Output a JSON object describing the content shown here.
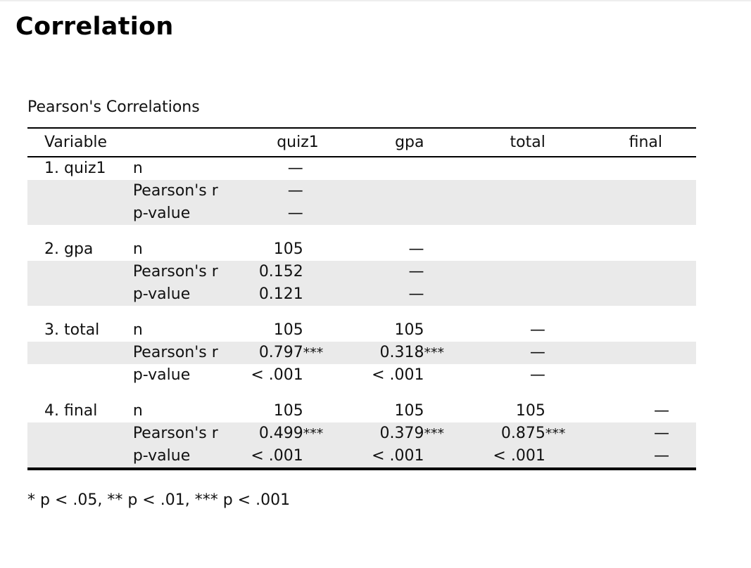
{
  "page_title": "Correlation",
  "table": {
    "title": "Pearson's Correlations",
    "headers": [
      "Variable",
      "",
      "quiz1",
      "gpa",
      "total",
      "final"
    ],
    "groups": [
      {
        "variable": "1. quiz1",
        "rows": [
          {
            "stat": "n",
            "cells": [
              {
                "v": "—",
                "s": ""
              },
              {
                "v": "",
                "s": ""
              },
              {
                "v": "",
                "s": ""
              },
              {
                "v": "",
                "s": ""
              }
            ]
          },
          {
            "stat": "Pearson's r",
            "cells": [
              {
                "v": "—",
                "s": ""
              },
              {
                "v": "",
                "s": ""
              },
              {
                "v": "",
                "s": ""
              },
              {
                "v": "",
                "s": ""
              }
            ]
          },
          {
            "stat": "p-value",
            "cells": [
              {
                "v": "—",
                "s": ""
              },
              {
                "v": "",
                "s": ""
              },
              {
                "v": "",
                "s": ""
              },
              {
                "v": "",
                "s": ""
              }
            ]
          }
        ]
      },
      {
        "variable": "2. gpa",
        "rows": [
          {
            "stat": "n",
            "cells": [
              {
                "v": "105",
                "s": ""
              },
              {
                "v": "—",
                "s": ""
              },
              {
                "v": "",
                "s": ""
              },
              {
                "v": "",
                "s": ""
              }
            ]
          },
          {
            "stat": "Pearson's r",
            "cells": [
              {
                "v": "0.152",
                "s": ""
              },
              {
                "v": "—",
                "s": ""
              },
              {
                "v": "",
                "s": ""
              },
              {
                "v": "",
                "s": ""
              }
            ]
          },
          {
            "stat": "p-value",
            "cells": [
              {
                "v": "0.121",
                "s": ""
              },
              {
                "v": "—",
                "s": ""
              },
              {
                "v": "",
                "s": ""
              },
              {
                "v": "",
                "s": ""
              }
            ]
          }
        ]
      },
      {
        "variable": "3. total",
        "rows": [
          {
            "stat": "n",
            "cells": [
              {
                "v": "105",
                "s": ""
              },
              {
                "v": "105",
                "s": ""
              },
              {
                "v": "—",
                "s": ""
              },
              {
                "v": "",
                "s": ""
              }
            ]
          },
          {
            "stat": "Pearson's r",
            "cells": [
              {
                "v": "0.797",
                "s": "***"
              },
              {
                "v": "0.318",
                "s": "***"
              },
              {
                "v": "—",
                "s": ""
              },
              {
                "v": "",
                "s": ""
              }
            ]
          },
          {
            "stat": "p-value",
            "cells": [
              {
                "v": "< .001",
                "s": ""
              },
              {
                "v": "< .001",
                "s": ""
              },
              {
                "v": "—",
                "s": ""
              },
              {
                "v": "",
                "s": ""
              }
            ]
          }
        ]
      },
      {
        "variable": "4. final",
        "rows": [
          {
            "stat": "n",
            "cells": [
              {
                "v": "105",
                "s": ""
              },
              {
                "v": "105",
                "s": ""
              },
              {
                "v": "105",
                "s": ""
              },
              {
                "v": "—",
                "s": ""
              }
            ]
          },
          {
            "stat": "Pearson's r",
            "cells": [
              {
                "v": "0.499",
                "s": "***"
              },
              {
                "v": "0.379",
                "s": "***"
              },
              {
                "v": "0.875",
                "s": "***"
              },
              {
                "v": "—",
                "s": ""
              }
            ]
          },
          {
            "stat": "p-value",
            "cells": [
              {
                "v": "< .001",
                "s": ""
              },
              {
                "v": "< .001",
                "s": ""
              },
              {
                "v": "< .001",
                "s": ""
              },
              {
                "v": "—",
                "s": ""
              }
            ]
          }
        ]
      }
    ],
    "footnote": "* p < .05, ** p < .01, *** p < .001"
  }
}
